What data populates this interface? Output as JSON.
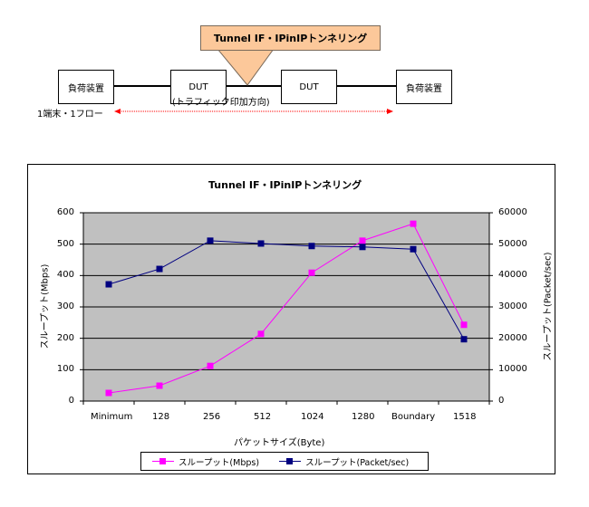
{
  "diagram": {
    "callout_label": "Tunnel IF・IPinIPトンネリング",
    "callout_color": "#fcc89a",
    "nodes": [
      {
        "label": "負荷装置"
      },
      {
        "label": "DUT"
      },
      {
        "label": "DUT"
      },
      {
        "label": "負荷装置"
      }
    ],
    "flow_label": "1端末・1フロー",
    "direction_label": "(トラフィック印加方向)",
    "arrow_color": "#ff0000"
  },
  "chart": {
    "title": "Tunnel IF・IPinIPトンネリング",
    "ylabel_left": "スループット(Mbps)",
    "ylabel_right": "スループット(Packet/sec)",
    "xlabel": "パケットサイズ(Byte)",
    "left_ticks": [
      "600",
      "500",
      "400",
      "300",
      "200",
      "100",
      "0"
    ],
    "right_ticks": [
      "60000",
      "50000",
      "40000",
      "30000",
      "20000",
      "10000",
      "0"
    ],
    "categories": [
      "Minimum",
      "128",
      "256",
      "512",
      "1024",
      "1280",
      "Boundary",
      "1518"
    ],
    "legend": {
      "mbps": "スループット(Mbps)",
      "pps": "スループット(Packet/sec)"
    },
    "plot_bg": "#c0c0c0",
    "mbps_color": "#ff00ff",
    "pps_color": "#000080"
  },
  "chart_data": {
    "type": "line",
    "title": "Tunnel IF・IPinIPトンネリング",
    "xlabel": "パケットサイズ(Byte)",
    "ylabel": "スループット(Mbps)",
    "ylabel_secondary": "スループット(Packet/sec)",
    "categories": [
      "Minimum",
      "128",
      "256",
      "512",
      "1024",
      "1280",
      "Boundary",
      "1518"
    ],
    "series": [
      {
        "name": "スループット(Mbps)",
        "axis": "left",
        "color": "#ff00ff",
        "values": [
          26,
          49,
          112,
          214,
          409,
          511,
          565,
          243
        ]
      },
      {
        "name": "スループット(Packet/sec)",
        "axis": "right",
        "color": "#000080",
        "values": [
          37200,
          42100,
          51100,
          50200,
          49400,
          49100,
          48400,
          19700
        ]
      }
    ],
    "ylim": [
      0,
      600
    ],
    "ylim_secondary": [
      0,
      60000
    ],
    "grid": true,
    "legend_position": "bottom"
  }
}
